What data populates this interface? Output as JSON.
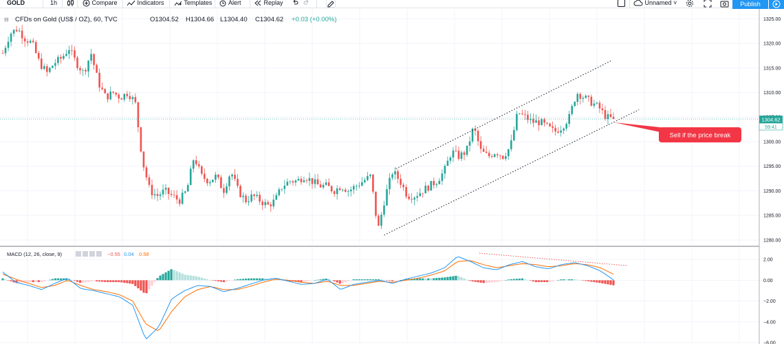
{
  "toolbar": {
    "symbol": "GOLD",
    "interval": "1h",
    "compare": "Compare",
    "indicators": "Indicators",
    "templates": "Templates",
    "alert": "Alert",
    "replay": "Replay",
    "layout_name": "Unnamed",
    "publish": "Publish"
  },
  "legend": {
    "title": "CFDs on Gold (US$ / OZ), 60, TVC",
    "open": "O1304.52",
    "high": "H1304.66",
    "low": "L1304.40",
    "close": "C1304.62",
    "change": "+0.03 (+0.00%)"
  },
  "macd_legend": {
    "title": "MACD (12, 26, close, 9)",
    "hist": "−0.55",
    "macd": "0.04",
    "signal": "0.58"
  },
  "price_axis": [
    "1325.00",
    "1320.00",
    "1315.00",
    "1310.00",
    "1305.00",
    "1300.00",
    "1295.00",
    "1290.00",
    "1285.00",
    "1280.00"
  ],
  "macd_axis": [
    "2.00",
    "0.00",
    "−2.00",
    "−4.00",
    "−6.00"
  ],
  "last_price": {
    "value": "1304.62",
    "countdown": "59:41"
  },
  "annotation": "Sell if the price break",
  "colors": {
    "up": "#26a69a",
    "down": "#ef5350",
    "macd": "#2196f3",
    "signal": "#ff6d00",
    "callout": "#f23645"
  },
  "chart_data": [
    {
      "type": "candlestick",
      "ylim": [
        1279,
        1327
      ],
      "grid": true,
      "close_path": [
        1318,
        1322,
        1323,
        1321,
        1320,
        1316,
        1314,
        1316,
        1317,
        1319,
        1316,
        1314,
        1318,
        1312,
        1309,
        1310,
        1309,
        1310,
        1308,
        1296,
        1290,
        1289,
        1290,
        1289,
        1288,
        1290,
        1297,
        1293,
        1292,
        1293,
        1290,
        1294,
        1290,
        1288,
        1289,
        1288,
        1287,
        1288,
        1291,
        1292,
        1292,
        1293,
        1292,
        1291,
        1291,
        1290,
        1291,
        1290,
        1291,
        1292,
        1293,
        1282,
        1289,
        1294,
        1292,
        1289,
        1289,
        1290,
        1291,
        1292,
        1294,
        1298,
        1297,
        1298,
        1303,
        1298,
        1297,
        1298,
        1297,
        1299,
        1306,
        1305,
        1304,
        1304,
        1303,
        1302,
        1303,
        1305,
        1310,
        1309,
        1308,
        1307,
        1305,
        1304.62
      ],
      "trend_lines": [
        {
          "name": "upper-channel",
          "x": [
            0.505,
            0.78
          ],
          "y": [
            1294.5,
            1316.5
          ]
        },
        {
          "name": "lower-channel",
          "x": [
            0.49,
            0.815
          ],
          "y": [
            1281,
            1306.5
          ]
        }
      ]
    },
    {
      "type": "macd",
      "ylim": [
        -6,
        3
      ],
      "macd_path": [
        0.8,
        -0.2,
        -0.5,
        -0.9,
        -0.3,
        0.2,
        -0.8,
        -1.0,
        -1.3,
        -1.6,
        -2.4,
        -5.7,
        -4.5,
        -1.8,
        -1.0,
        -0.5,
        -0.6,
        -1.1,
        -0.8,
        -0.4,
        0.0,
        0.2,
        -0.1,
        -0.4,
        -0.3,
        0.1,
        -0.9,
        -0.4,
        -0.2,
        0.0,
        -0.3,
        0.1,
        0.4,
        0.7,
        1.2,
        2.3,
        1.8,
        1.2,
        1.0,
        1.5,
        1.8,
        1.3,
        1.1,
        1.5,
        1.7,
        1.4,
        0.9,
        0.04
      ],
      "signal_path": [
        0.6,
        0.1,
        -0.3,
        -0.7,
        -0.5,
        0.0,
        -0.5,
        -0.9,
        -1.1,
        -1.4,
        -2.0,
        -4.2,
        -4.9,
        -3.0,
        -1.6,
        -0.9,
        -0.6,
        -0.9,
        -0.9,
        -0.6,
        -0.2,
        0.1,
        0.0,
        -0.2,
        -0.3,
        -0.1,
        -0.5,
        -0.5,
        -0.3,
        -0.1,
        -0.2,
        0.0,
        0.2,
        0.5,
        0.9,
        1.8,
        1.9,
        1.5,
        1.2,
        1.4,
        1.6,
        1.5,
        1.3,
        1.4,
        1.6,
        1.5,
        1.2,
        0.58
      ]
    }
  ]
}
